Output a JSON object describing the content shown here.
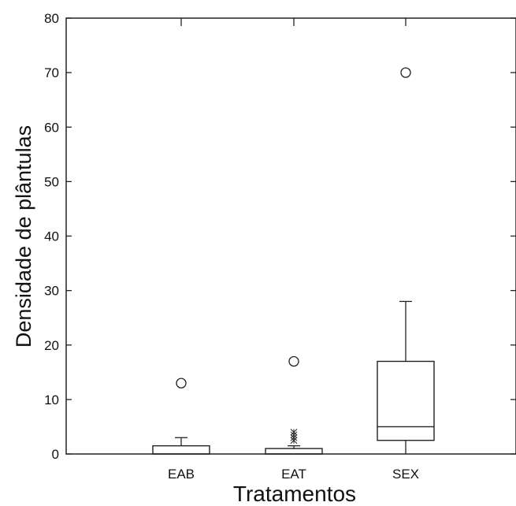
{
  "chart_data": {
    "type": "box",
    "xlabel": "Tratamentos",
    "ylabel": "Densidade de plântulas",
    "ylim": [
      0,
      80
    ],
    "yticks": [
      0,
      10,
      20,
      30,
      40,
      50,
      60,
      70,
      80
    ],
    "categories": [
      "EAB",
      "EAT",
      "SEX"
    ],
    "boxes": [
      {
        "category": "EAB",
        "whisker_low": 0,
        "q1": 0,
        "median": 0,
        "q3": 1.5,
        "whisker_high": 3,
        "outliers": [
          13
        ],
        "far_outliers": []
      },
      {
        "category": "EAT",
        "whisker_low": 0,
        "q1": 0,
        "median": 0,
        "q3": 1,
        "whisker_high": 1.5,
        "outliers": [
          17
        ],
        "far_outliers": [
          2.5,
          3,
          3.5,
          4
        ]
      },
      {
        "category": "SEX",
        "whisker_low": 0,
        "q1": 2.5,
        "median": 5,
        "q3": 17,
        "whisker_high": 28,
        "outliers": [
          70
        ],
        "far_outliers": []
      }
    ],
    "grid": false,
    "legend": "none"
  },
  "colors": {
    "axis": "#222222",
    "background": "#ffffff"
  }
}
